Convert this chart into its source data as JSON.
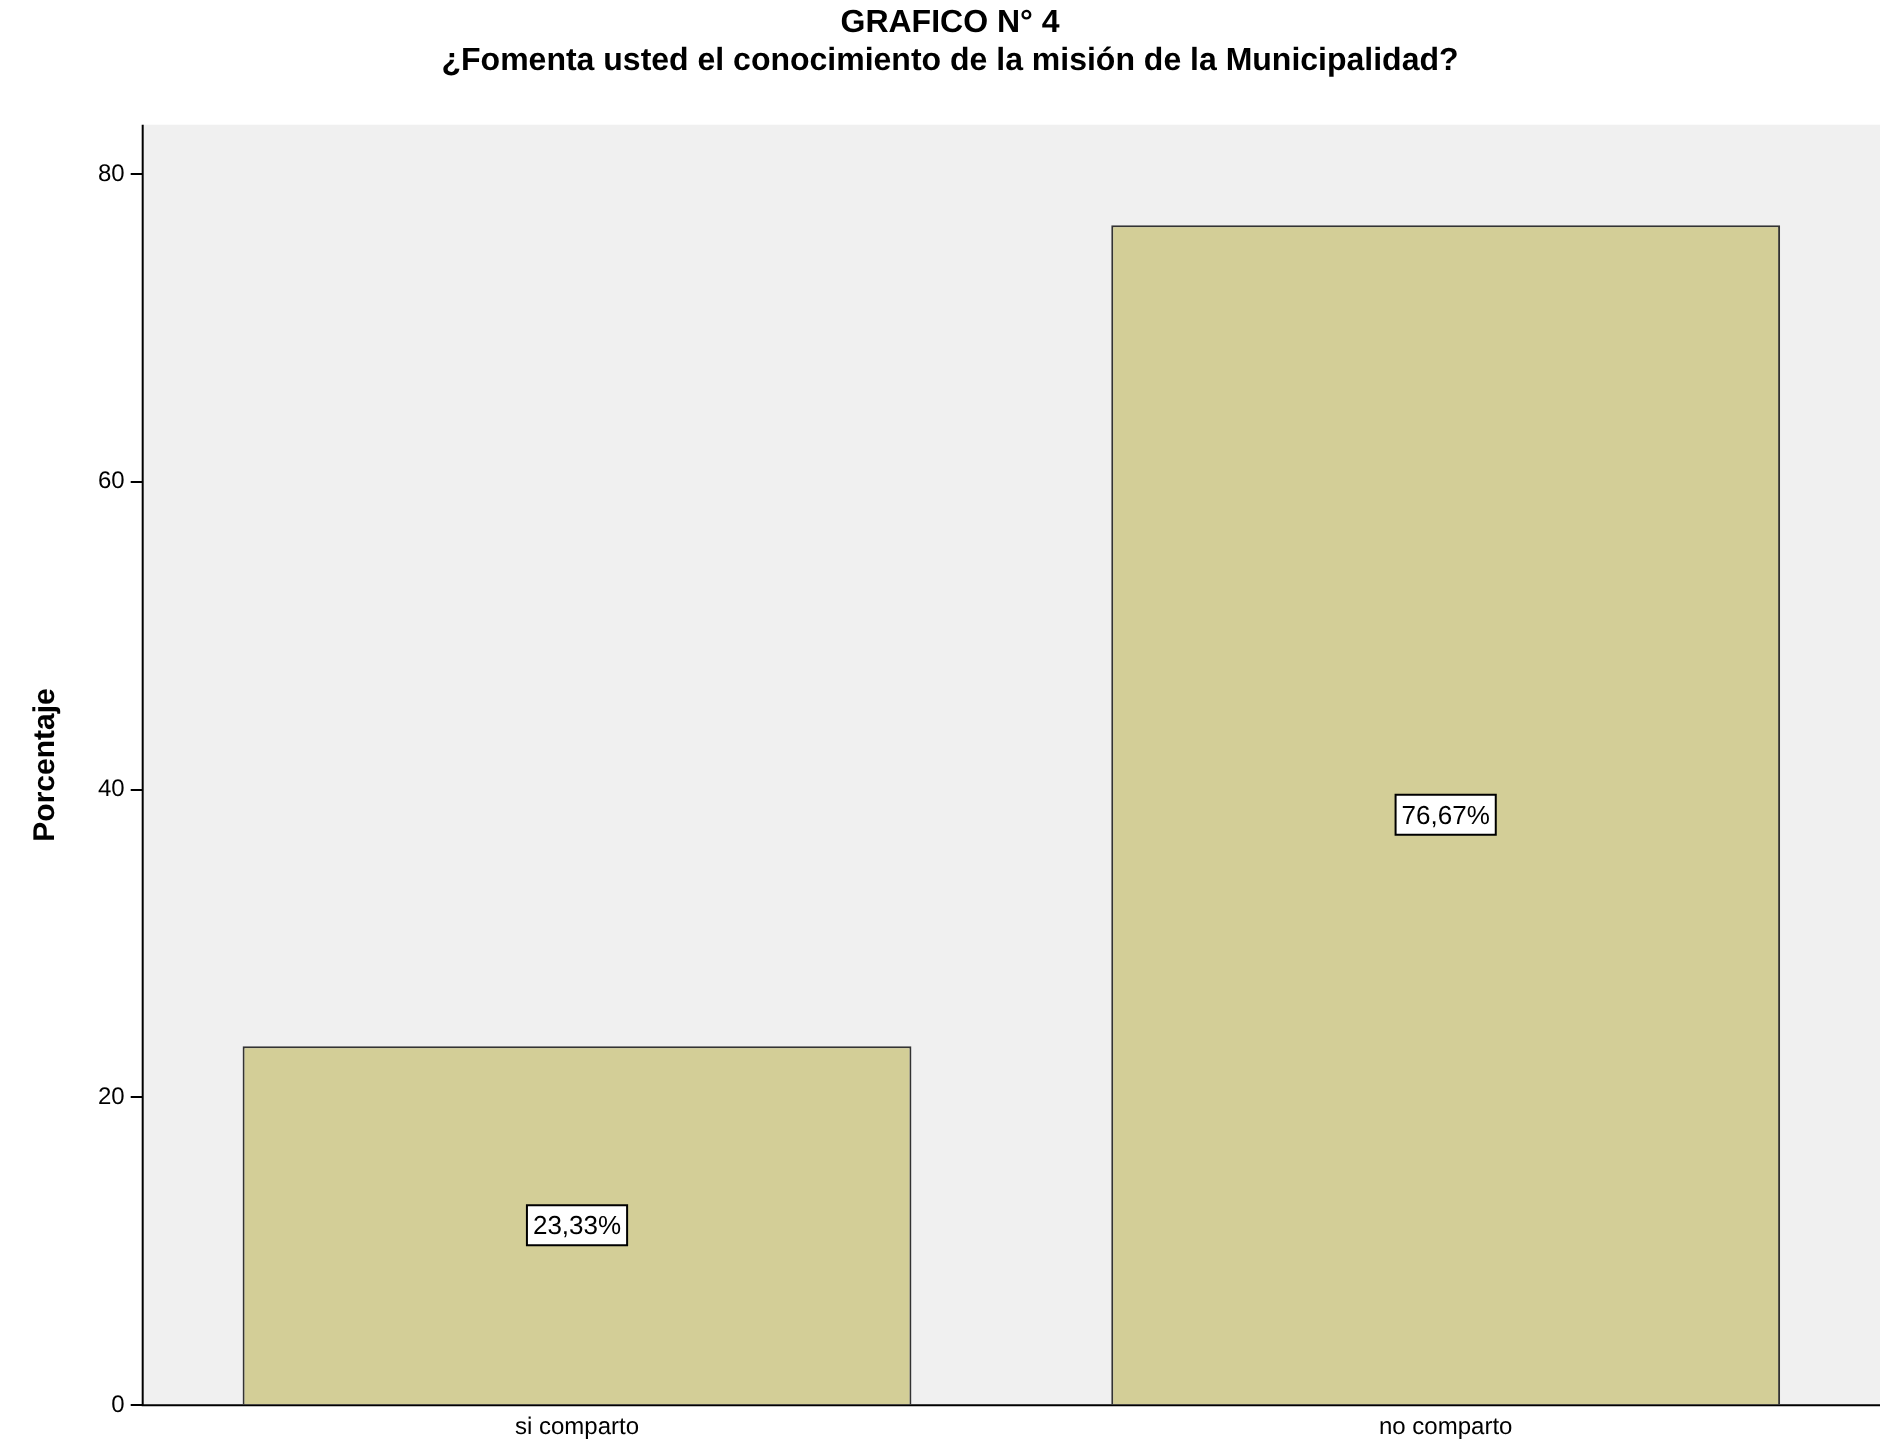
{
  "chart_data": {
    "type": "bar",
    "title": "GRAFICO N° 4",
    "subtitle": "¿Fomenta usted el conocimiento de la misión de la Municipalidad?",
    "ylabel": "Porcentaje",
    "categories": [
      "si comparto",
      "no comparto"
    ],
    "values": [
      23.33,
      76.67
    ],
    "value_labels": [
      "23,33%",
      "76,67%"
    ],
    "color": "#d3ce97",
    "ylim": [
      0,
      83.2
    ],
    "yticks": [
      0,
      20,
      40,
      60,
      80
    ],
    "grid": false,
    "legend": false
  }
}
